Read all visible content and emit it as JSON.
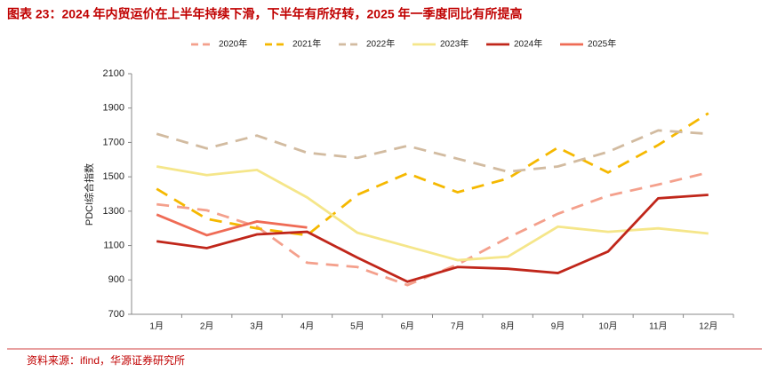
{
  "chart_data": {
    "type": "line",
    "title": "图表 23：2024 年内贸运价在上半年持续下滑，下半年有所好转，2025 年一季度同比有所提高",
    "ylabel": "PDCI综合指数",
    "source": "资料来源：ifind，华源证券研究所",
    "categories": [
      "1月",
      "2月",
      "3月",
      "4月",
      "5月",
      "6月",
      "7月",
      "8月",
      "9月",
      "10月",
      "11月",
      "12月"
    ],
    "series": [
      {
        "name": "2020年",
        "color": "#f4a08c",
        "dash": true,
        "values": [
          1340,
          1305,
          1210,
          1000,
          975,
          870,
          990,
          1145,
          1285,
          1390,
          1455,
          1525
        ]
      },
      {
        "name": "2021年",
        "color": "#f5b800",
        "dash": true,
        "values": [
          1430,
          1255,
          1200,
          1160,
          1395,
          1520,
          1410,
          1490,
          1670,
          1525,
          1685,
          1870
        ]
      },
      {
        "name": "2022年",
        "color": "#d2bba0",
        "dash": true,
        "values": [
          1750,
          1665,
          1740,
          1640,
          1610,
          1680,
          1605,
          1530,
          1560,
          1645,
          1770,
          1750
        ]
      },
      {
        "name": "2023年",
        "color": "#f5e68a",
        "dash": false,
        "values": [
          1560,
          1510,
          1540,
          1380,
          1175,
          1095,
          1015,
          1035,
          1210,
          1180,
          1200,
          1170
        ]
      },
      {
        "name": "2024年",
        "color": "#c0261a",
        "dash": false,
        "values": [
          1125,
          1085,
          1165,
          1180,
          1030,
          890,
          975,
          965,
          940,
          1065,
          1375,
          1395
        ]
      },
      {
        "name": "2025年",
        "color": "#ef6b55",
        "dash": false,
        "values": [
          1280,
          1160,
          1240,
          1205,
          null,
          null,
          null,
          null,
          null,
          null,
          null,
          null
        ]
      }
    ],
    "ylim": [
      700,
      2100
    ],
    "yticks": [
      700,
      900,
      1100,
      1300,
      1500,
      1700,
      1900,
      2100
    ],
    "grid": false
  }
}
